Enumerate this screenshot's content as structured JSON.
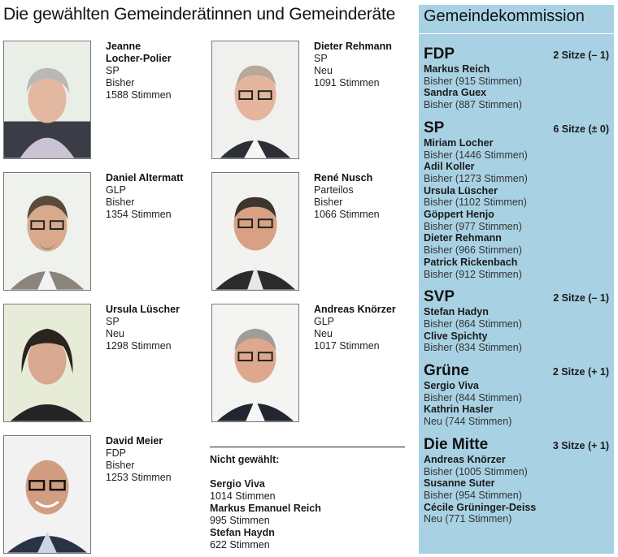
{
  "title": "Die gewählten Gemeinderätinnen und Gemeinderäte",
  "council": [
    {
      "name_lines": [
        "Jeanne",
        "Locher-Polier"
      ],
      "party": "SP",
      "status": "Bisher",
      "votes": "1588 Stimmen"
    },
    {
      "name_lines": [
        "Dieter Rehmann"
      ],
      "party": "SP",
      "status": "Neu",
      "votes": "1091 Stimmen"
    },
    {
      "name_lines": [
        "Daniel Altermatt"
      ],
      "party": "GLP",
      "status": "Bisher",
      "votes": "1354 Stimmen"
    },
    {
      "name_lines": [
        "René Nusch"
      ],
      "party": "Parteilos",
      "status": "Bisher",
      "votes": "1066 Stimmen"
    },
    {
      "name_lines": [
        "Ursula Lüscher"
      ],
      "party": "SP",
      "status": "Neu",
      "votes": "1298 Stimmen"
    },
    {
      "name_lines": [
        "Andreas Knörzer"
      ],
      "party": "GLP",
      "status": "Neu",
      "votes": "1017 Stimmen"
    },
    {
      "name_lines": [
        "David Meier"
      ],
      "party": "FDP",
      "status": "Bisher",
      "votes": "1253 Stimmen"
    }
  ],
  "not_elected": {
    "heading": "Nicht gewählt:",
    "people": [
      {
        "name": "Sergio Viva",
        "votes": "1014 Stimmen"
      },
      {
        "name": "Markus Emanuel Reich",
        "votes": "995 Stimmen"
      },
      {
        "name": "Stefan Haydn",
        "votes": "622 Stimmen"
      }
    ]
  },
  "commission": {
    "title": "Gemeindekommission",
    "parties": [
      {
        "name": "FDP",
        "seats": "2 Sitze (– 1)",
        "members": [
          {
            "name": "Markus Reich",
            "detail": "Bisher (915 Stimmen)"
          },
          {
            "name": "Sandra Guex",
            "detail": "Bisher (887 Stimmen)"
          }
        ]
      },
      {
        "name": "SP",
        "seats": "6 Sitze (± 0)",
        "members": [
          {
            "name": "Miriam Locher",
            "detail": "Bisher (1446 Stimmen)"
          },
          {
            "name": "Adil Koller",
            "detail": "Bisher (1273 Stimmen)"
          },
          {
            "name": "Ursula Lüscher",
            "detail": "Bisher (1102 Stimmen)"
          },
          {
            "name": "Göppert Henjo",
            "detail": "Bisher (977 Stimmen)"
          },
          {
            "name": "Dieter Rehmann",
            "detail": "Bisher (966 Stimmen)"
          },
          {
            "name": "Patrick Rickenbach",
            "detail": "Bisher (912 Stimmen)"
          }
        ]
      },
      {
        "name": "SVP",
        "seats": "2 Sitze (– 1)",
        "members": [
          {
            "name": "Stefan Hadyn",
            "detail": "Bisher (864 Stimmen)"
          },
          {
            "name": "Clive Spichty",
            "detail": "Bisher (834 Stimmen)"
          }
        ]
      },
      {
        "name": "Grüne",
        "seats": "2 Sitze (+ 1)",
        "members": [
          {
            "name": "Sergio Viva",
            "detail": "Bisher (844 Stimmen)"
          },
          {
            "name": "Kathrin Hasler",
            "detail": "Neu (744 Stimmen)"
          }
        ]
      },
      {
        "name": "Die Mitte",
        "seats": "3 Sitze (+ 1)",
        "members": [
          {
            "name": "Andreas Knörzer",
            "detail": "Bisher (1005 Stimmen)"
          },
          {
            "name": "Susanne Suter",
            "detail": "Bisher (954 Stimmen)"
          },
          {
            "name": "Cécile Grüninger-Deiss",
            "detail": "Neu (771 Stimmen)"
          }
        ]
      }
    ]
  },
  "colors": {
    "sidebar_bg": "#a8d2e4"
  }
}
